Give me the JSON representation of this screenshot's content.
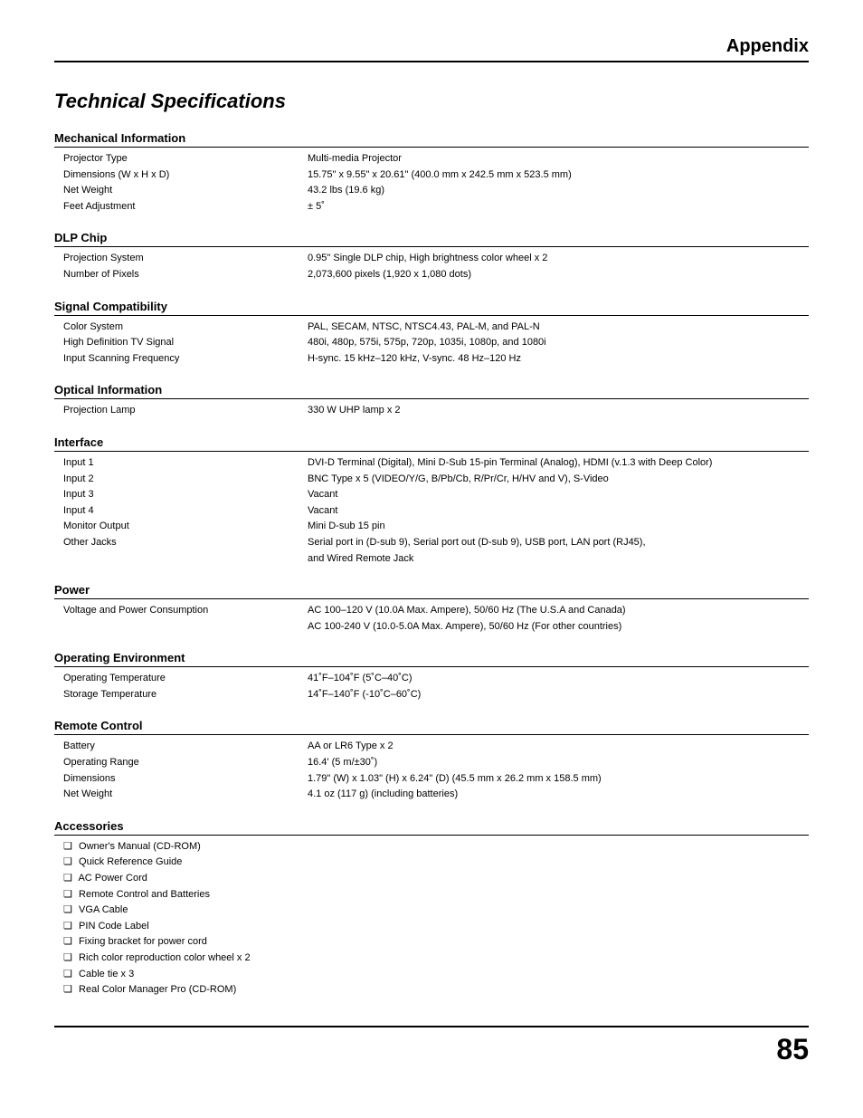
{
  "header": {
    "title": "Appendix"
  },
  "main_title": "Technical Specifications",
  "sections": {
    "mechanical": {
      "title": "Mechanical Information",
      "rows": [
        {
          "label": "Projector Type",
          "value": "Multi-media Projector"
        },
        {
          "label": "Dimensions (W x H x D)",
          "value": "15.75\" x 9.55\" x 20.61\" (400.0 mm x 242.5 mm x 523.5 mm)"
        },
        {
          "label": "Net Weight",
          "value": "43.2 lbs (19.6 kg)"
        },
        {
          "label": "Feet Adjustment",
          "value": "± 5˚"
        }
      ]
    },
    "dlp": {
      "title": "DLP Chip",
      "rows": [
        {
          "label": "Projection System",
          "value": "0.95\" Single DLP chip, High brightness color wheel x 2"
        },
        {
          "label": "Number of Pixels",
          "value": "2,073,600 pixels (1,920 x 1,080 dots)"
        }
      ]
    },
    "signal": {
      "title": "Signal Compatibility",
      "rows": [
        {
          "label": "Color System",
          "value": "PAL, SECAM, NTSC, NTSC4.43, PAL-M, and PAL-N"
        },
        {
          "label": "High Definition TV Signal",
          "value": "480i, 480p, 575i, 575p, 720p, 1035i, 1080p, and 1080i"
        },
        {
          "label": "Input Scanning Frequency",
          "value": "H-sync. 15 kHz–120 kHz, V-sync. 48 Hz–120 Hz"
        }
      ]
    },
    "optical": {
      "title": "Optical Information",
      "rows": [
        {
          "label": "Projection Lamp",
          "value": "330 W UHP lamp x 2"
        }
      ]
    },
    "interface": {
      "title": "Interface",
      "rows": [
        {
          "label": "Input 1",
          "value": "DVI-D Terminal (Digital), Mini D-Sub 15-pin Terminal (Analog), HDMI (v.1.3 with Deep Color)"
        },
        {
          "label": "Input 2",
          "value": "BNC Type x 5 (VIDEO/Y/G, B/Pb/Cb, R/Pr/Cr, H/HV and V), S-Video"
        },
        {
          "label": "Input 3",
          "value": "Vacant"
        },
        {
          "label": "Input 4",
          "value": "Vacant"
        },
        {
          "label": "Monitor Output",
          "value": "Mini D-sub 15 pin"
        },
        {
          "label": "Other Jacks",
          "value": "Serial port in (D-sub 9), Serial port out (D-sub 9), USB port, LAN port (RJ45),"
        },
        {
          "label": "",
          "value": "and Wired Remote Jack"
        }
      ]
    },
    "power": {
      "title": "Power",
      "rows": [
        {
          "label": "Voltage and Power Consumption",
          "value": "AC 100–120 V (10.0A Max. Ampere), 50/60 Hz (The U.S.A and Canada)"
        },
        {
          "label": "",
          "value": "AC 100-240 V (10.0-5.0A Max. Ampere), 50/60 Hz (For other countries)"
        }
      ]
    },
    "env": {
      "title": "Operating Environment",
      "rows": [
        {
          "label": "Operating Temperature",
          "value": "41˚F–104˚F (5˚C–40˚C)"
        },
        {
          "label": "Storage Temperature",
          "value": "14˚F–140˚F (-10˚C–60˚C)"
        }
      ]
    },
    "remote": {
      "title": "Remote Control",
      "rows": [
        {
          "label": "Battery",
          "value": "AA or LR6 Type x 2"
        },
        {
          "label": "Operating Range",
          "value": "16.4' (5 m/±30˚)"
        },
        {
          "label": "Dimensions",
          "value": "1.79\" (W) x 1.03\" (H) x 6.24\" (D) (45.5 mm x 26.2 mm x 158.5 mm)"
        },
        {
          "label": "Net Weight",
          "value": "4.1 oz (117 g) (including batteries)"
        }
      ]
    },
    "accessories": {
      "title": "Accessories",
      "items": [
        "Owner's Manual (CD-ROM)",
        "Quick Reference Guide",
        "AC Power Cord",
        "Remote Control and Batteries",
        "VGA Cable",
        "PIN Code Label",
        "Fixing bracket for power cord",
        "Rich color reproduction color wheel x 2",
        "Cable tie x 3",
        "Real Color Manager Pro (CD-ROM)"
      ]
    }
  },
  "page_number": "85",
  "styling": {
    "body_width": 954,
    "body_bg": "#ffffff",
    "text_color": "#000000",
    "rule_color": "#000000",
    "header_fontsize": 20,
    "main_title_fontsize": 22,
    "section_title_fontsize": 13,
    "row_fontsize": 11,
    "page_number_fontsize": 32,
    "label_col_width": 270
  }
}
